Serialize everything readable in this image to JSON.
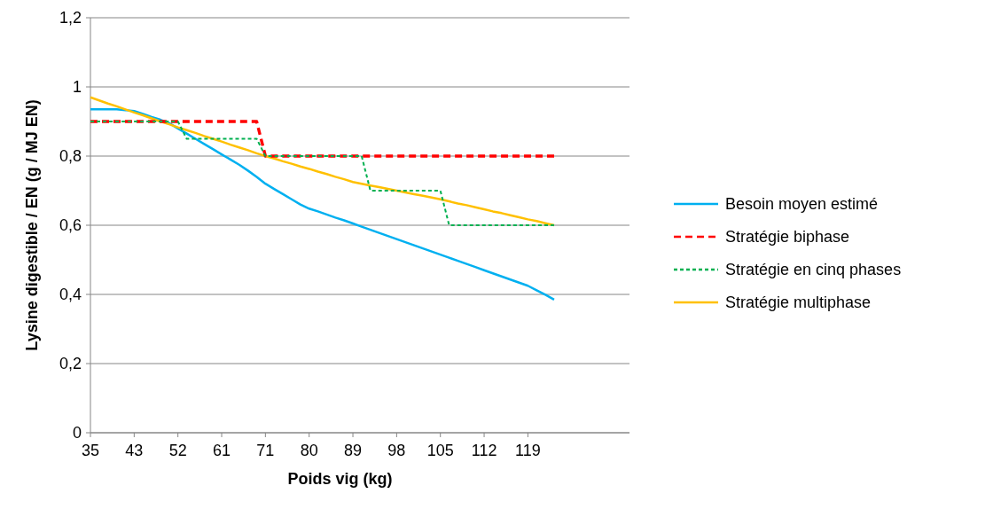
{
  "chart_data": {
    "type": "line",
    "xlabel": "Poids vig (kg)",
    "ylabel": "Lysine digestible / EN (g / MJ EN)",
    "categories": [
      "35",
      null,
      null,
      null,
      null,
      "43",
      null,
      null,
      null,
      null,
      "52",
      null,
      null,
      null,
      null,
      "61",
      null,
      null,
      null,
      null,
      "71",
      null,
      null,
      null,
      null,
      "80",
      null,
      null,
      null,
      null,
      "89",
      null,
      null,
      null,
      null,
      "98",
      null,
      null,
      null,
      null,
      "105",
      null,
      null,
      null,
      null,
      "112",
      null,
      null,
      null,
      null,
      "119",
      null,
      null,
      null
    ],
    "ylim": [
      0,
      1.2
    ],
    "yticks": [
      0,
      {
        "value": 0.2,
        "label": "0,2"
      },
      {
        "value": 0.4,
        "label": "0,4"
      },
      {
        "value": 0.6,
        "label": "0,6"
      },
      {
        "value": 0.8,
        "label": "0,8"
      },
      {
        "value": 1,
        "label": "1"
      },
      {
        "value": 1.2,
        "label": "1,2"
      }
    ],
    "grid": "y",
    "legend": "right",
    "marker": "none",
    "series": [
      {
        "name": "Besoin moyen estimé",
        "color": "#00b0f0",
        "line_style": "solid",
        "values": [
          0.935,
          0.935,
          0.935,
          0.935,
          0.933,
          0.93,
          0.922,
          0.913,
          0.905,
          0.895,
          0.88,
          0.865,
          0.85,
          0.835,
          0.82,
          0.805,
          0.79,
          0.775,
          0.758,
          0.74,
          0.72,
          0.705,
          0.69,
          0.675,
          0.66,
          0.648,
          0.64,
          0.631,
          0.622,
          0.614,
          0.605,
          0.596,
          0.587,
          0.578,
          0.569,
          0.56,
          0.551,
          0.542,
          0.533,
          0.524,
          0.515,
          0.506,
          0.497,
          0.488,
          0.479,
          0.47,
          0.461,
          0.452,
          0.443,
          0.434,
          0.425,
          0.412,
          0.399,
          0.385
        ]
      },
      {
        "name": "Stratégie biphase",
        "color": "#ff0000",
        "line_style": "dashed",
        "values": [
          0.9,
          0.9,
          0.9,
          0.9,
          0.9,
          0.9,
          0.9,
          0.9,
          0.9,
          0.9,
          0.9,
          0.9,
          0.9,
          0.9,
          0.9,
          0.9,
          0.9,
          0.9,
          0.9,
          0.9,
          0.8,
          0.8,
          0.8,
          0.8,
          0.8,
          0.8,
          0.8,
          0.8,
          0.8,
          0.8,
          0.8,
          0.8,
          0.8,
          0.8,
          0.8,
          0.8,
          0.8,
          0.8,
          0.8,
          0.8,
          0.8,
          0.8,
          0.8,
          0.8,
          0.8,
          0.8,
          0.8,
          0.8,
          0.8,
          0.8,
          0.8,
          0.8,
          0.8,
          0.8
        ]
      },
      {
        "name": "Stratégie  en cinq phases",
        "color": "#00b050",
        "line_style": "dotted",
        "values": [
          0.9,
          0.9,
          0.9,
          0.9,
          0.9,
          0.9,
          0.9,
          0.9,
          0.9,
          0.9,
          0.9,
          0.85,
          0.85,
          0.85,
          0.85,
          0.85,
          0.85,
          0.85,
          0.85,
          0.85,
          0.8,
          0.8,
          0.8,
          0.8,
          0.8,
          0.8,
          0.8,
          0.8,
          0.8,
          0.8,
          0.8,
          0.8,
          0.7,
          0.7,
          0.7,
          0.7,
          0.7,
          0.7,
          0.7,
          0.7,
          0.7,
          0.6,
          0.6,
          0.6,
          0.6,
          0.6,
          0.6,
          0.6,
          0.6,
          0.6,
          0.6,
          0.6,
          0.6,
          0.6
        ]
      },
      {
        "name": "Stratégie multiphase",
        "color": "#ffc000",
        "line_style": "solid",
        "values": [
          0.97,
          0.961,
          0.952,
          0.944,
          0.935,
          0.926,
          0.918,
          0.909,
          0.9,
          0.892,
          0.883,
          0.875,
          0.867,
          0.858,
          0.85,
          0.842,
          0.833,
          0.825,
          0.817,
          0.808,
          0.8,
          0.793,
          0.785,
          0.778,
          0.77,
          0.763,
          0.755,
          0.748,
          0.74,
          0.733,
          0.725,
          0.72,
          0.715,
          0.71,
          0.705,
          0.7,
          0.695,
          0.69,
          0.685,
          0.68,
          0.675,
          0.669,
          0.663,
          0.658,
          0.652,
          0.646,
          0.64,
          0.635,
          0.629,
          0.623,
          0.617,
          0.612,
          0.606,
          0.6
        ]
      }
    ]
  }
}
